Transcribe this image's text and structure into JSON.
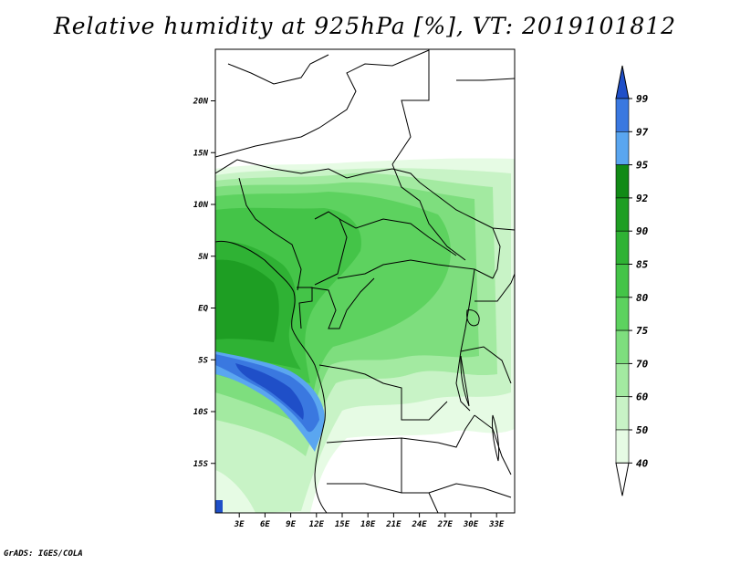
{
  "title": "Relative humidity at 925hPa [%], VT: 2019101812",
  "credit": "GrADS: IGES/COLA",
  "map": {
    "lat_labels": [
      {
        "text": "20N",
        "lat": 20
      },
      {
        "text": "15N",
        "lat": 15
      },
      {
        "text": "10N",
        "lat": 10
      },
      {
        "text": "5N",
        "lat": 5
      },
      {
        "text": "EQ",
        "lat": 0
      },
      {
        "text": "5S",
        "lat": -5
      },
      {
        "text": "10S",
        "lat": -10
      },
      {
        "text": "15S",
        "lat": -15
      }
    ],
    "lon_labels": [
      {
        "text": "3E",
        "lon": 3
      },
      {
        "text": "6E",
        "lon": 6
      },
      {
        "text": "9E",
        "lon": 9
      },
      {
        "text": "12E",
        "lon": 12
      },
      {
        "text": "15E",
        "lon": 15
      },
      {
        "text": "18E",
        "lon": 18
      },
      {
        "text": "21E",
        "lon": 21
      },
      {
        "text": "24E",
        "lon": 24
      },
      {
        "text": "27E",
        "lon": 27
      },
      {
        "text": "30E",
        "lon": 30
      },
      {
        "text": "33E",
        "lon": 33
      }
    ]
  },
  "colorbar": {
    "labels": [
      "99",
      "97",
      "95",
      "92",
      "90",
      "85",
      "80",
      "75",
      "70",
      "60",
      "50",
      "40"
    ],
    "colors": [
      "#1f4fc8",
      "#3a78e0",
      "#5aa6f0",
      "#118a16",
      "#1e9e23",
      "#2fb234",
      "#44c448",
      "#5dd25f",
      "#7ede7e",
      "#a3eaa1",
      "#c8f3c6",
      "#e6fbe4"
    ]
  }
}
